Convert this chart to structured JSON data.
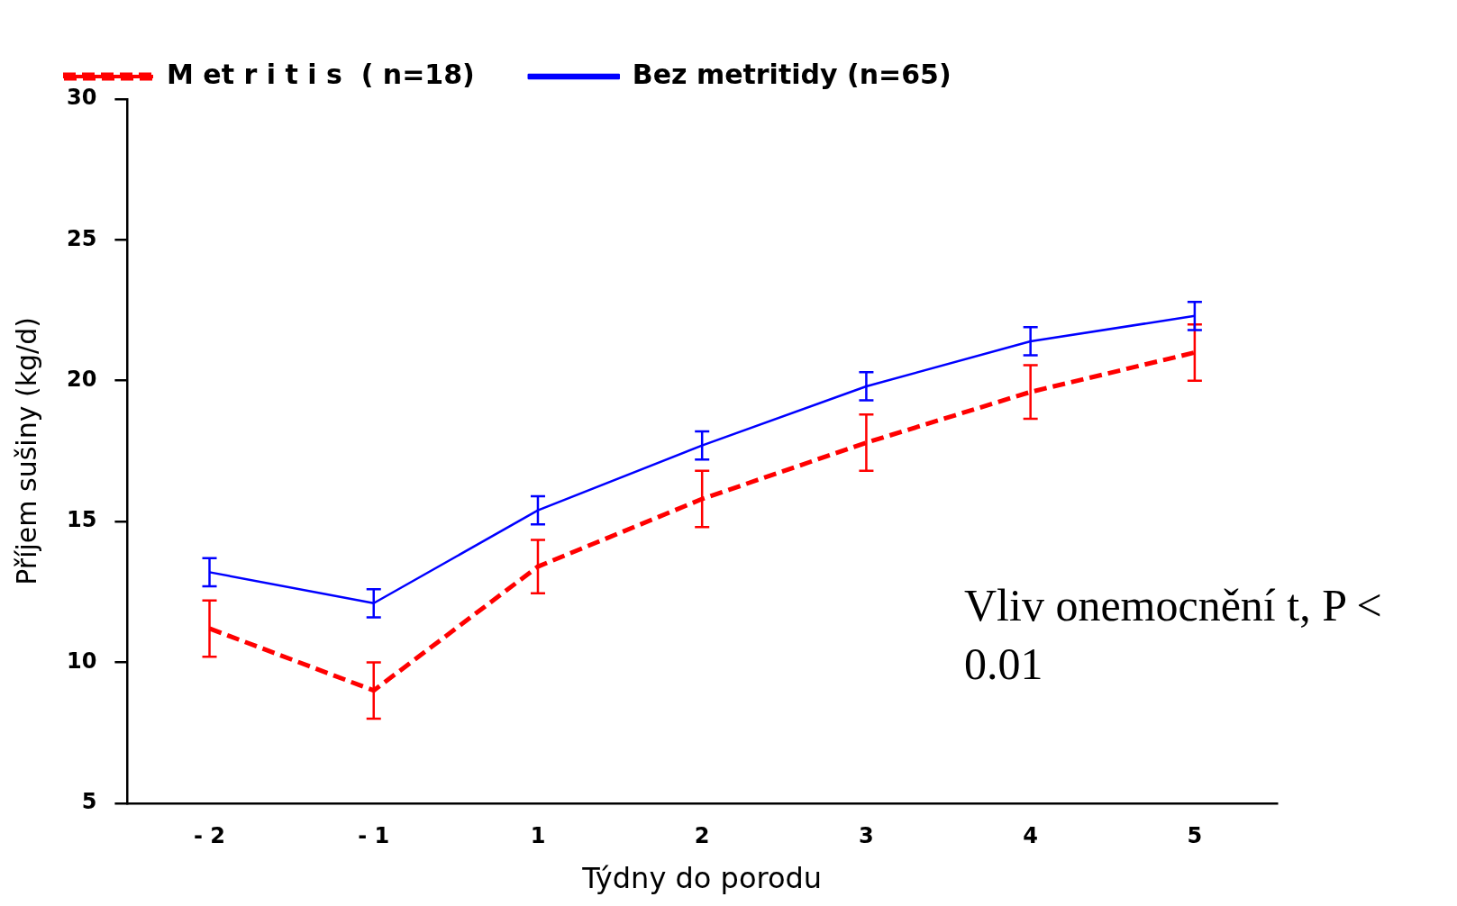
{
  "chart_data": {
    "type": "line",
    "xlabel": "Týdny do porodu",
    "ylabel": "Příjem sušiny (kg/d)",
    "categories": [
      "- 2",
      "- 1",
      "1",
      "2",
      "3",
      "4",
      "5"
    ],
    "series": [
      {
        "name": "M et r i t i s  ( n=18)",
        "color": "#ff0000",
        "line_style": "dashed",
        "values": [
          11.2,
          9.0,
          13.4,
          15.8,
          17.8,
          19.6,
          21.0
        ],
        "errors": [
          1.0,
          1.0,
          0.95,
          1.0,
          1.0,
          0.95,
          1.0
        ]
      },
      {
        "name": "Bez metritidy (n=65)",
        "color": "#0000ff",
        "line_style": "solid",
        "values": [
          13.2,
          12.1,
          15.4,
          17.7,
          19.8,
          21.4,
          22.3
        ],
        "errors": [
          0.5,
          0.5,
          0.5,
          0.5,
          0.5,
          0.5,
          0.5
        ]
      }
    ],
    "ylim": [
      5,
      30
    ],
    "yticks": [
      5,
      10,
      15,
      20,
      25,
      30
    ],
    "grid": false,
    "legend": "top",
    "marker": "none",
    "annotations": [
      "Vliv onemocnění t, P < 0.01"
    ]
  }
}
